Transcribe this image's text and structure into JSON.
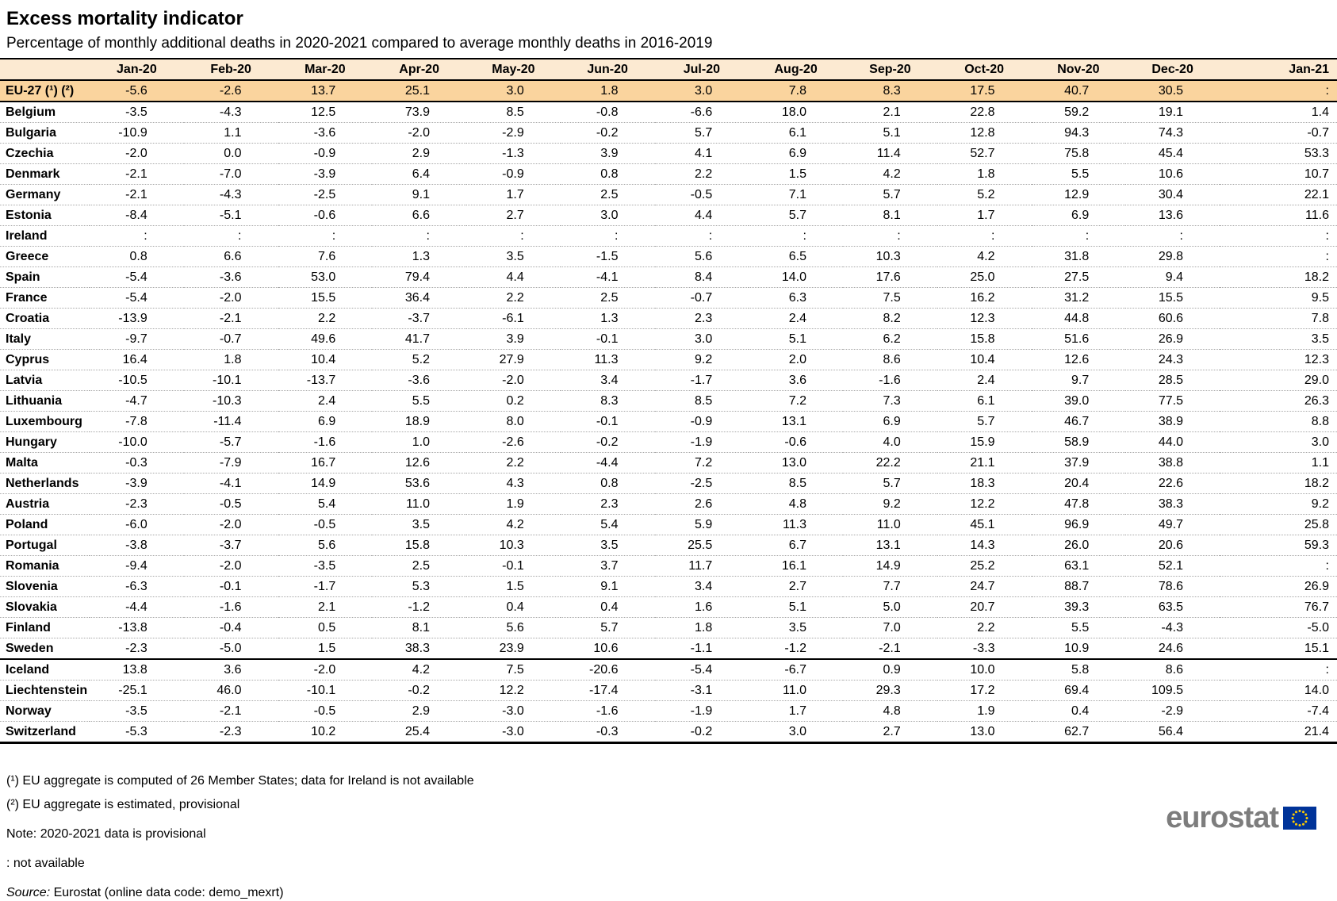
{
  "title": "Excess mortality indicator",
  "subtitle": "Percentage of monthly additional deaths in 2020-2021 compared to average monthly deaths in 2016-2019",
  "colors": {
    "header_bg": "#FCEAD2",
    "highlight_row_bg": "#FAD49E",
    "logo_gray": "#7D7D7D",
    "flag_blue": "#003399",
    "star_yellow": "#FFCC00"
  },
  "chart_data": {
    "type": "table",
    "columns": [
      "Jan-20",
      "Feb-20",
      "Mar-20",
      "Apr-20",
      "May-20",
      "Jun-20",
      "Jul-20",
      "Aug-20",
      "Sep-20",
      "Oct-20",
      "Nov-20",
      "Dec-20",
      "Jan-21"
    ],
    "not_available_symbol": ":",
    "rows": [
      {
        "name": "EU-27 (¹) (²)",
        "highlight": true,
        "values": [
          "-5.6",
          "-2.6",
          "13.7",
          "25.1",
          "3.0",
          "1.8",
          "3.0",
          "7.8",
          "8.3",
          "17.5",
          "40.7",
          "30.5",
          ":"
        ]
      },
      {
        "name": "Belgium",
        "values": [
          "-3.5",
          "-4.3",
          "12.5",
          "73.9",
          "8.5",
          "-0.8",
          "-6.6",
          "18.0",
          "2.1",
          "22.8",
          "59.2",
          "19.1",
          "1.4"
        ]
      },
      {
        "name": "Bulgaria",
        "values": [
          "-10.9",
          "1.1",
          "-3.6",
          "-2.0",
          "-2.9",
          "-0.2",
          "5.7",
          "6.1",
          "5.1",
          "12.8",
          "94.3",
          "74.3",
          "-0.7"
        ]
      },
      {
        "name": "Czechia",
        "values": [
          "-2.0",
          "0.0",
          "-0.9",
          "2.9",
          "-1.3",
          "3.9",
          "4.1",
          "6.9",
          "11.4",
          "52.7",
          "75.8",
          "45.4",
          "53.3"
        ]
      },
      {
        "name": "Denmark",
        "values": [
          "-2.1",
          "-7.0",
          "-3.9",
          "6.4",
          "-0.9",
          "0.8",
          "2.2",
          "1.5",
          "4.2",
          "1.8",
          "5.5",
          "10.6",
          "10.7"
        ]
      },
      {
        "name": "Germany",
        "values": [
          "-2.1",
          "-4.3",
          "-2.5",
          "9.1",
          "1.7",
          "2.5",
          "-0.5",
          "7.1",
          "5.7",
          "5.2",
          "12.9",
          "30.4",
          "22.1"
        ]
      },
      {
        "name": "Estonia",
        "values": [
          "-8.4",
          "-5.1",
          "-0.6",
          "6.6",
          "2.7",
          "3.0",
          "4.4",
          "5.7",
          "8.1",
          "1.7",
          "6.9",
          "13.6",
          "11.6"
        ]
      },
      {
        "name": "Ireland",
        "values": [
          ":",
          ":",
          ":",
          ":",
          ":",
          ":",
          ":",
          ":",
          ":",
          ":",
          ":",
          ":",
          ":"
        ]
      },
      {
        "name": "Greece",
        "values": [
          "0.8",
          "6.6",
          "7.6",
          "1.3",
          "3.5",
          "-1.5",
          "5.6",
          "6.5",
          "10.3",
          "4.2",
          "31.8",
          "29.8",
          ":"
        ]
      },
      {
        "name": "Spain",
        "values": [
          "-5.4",
          "-3.6",
          "53.0",
          "79.4",
          "4.4",
          "-4.1",
          "8.4",
          "14.0",
          "17.6",
          "25.0",
          "27.5",
          "9.4",
          "18.2"
        ]
      },
      {
        "name": "France",
        "values": [
          "-5.4",
          "-2.0",
          "15.5",
          "36.4",
          "2.2",
          "2.5",
          "-0.7",
          "6.3",
          "7.5",
          "16.2",
          "31.2",
          "15.5",
          "9.5"
        ]
      },
      {
        "name": "Croatia",
        "values": [
          "-13.9",
          "-2.1",
          "2.2",
          "-3.7",
          "-6.1",
          "1.3",
          "2.3",
          "2.4",
          "8.2",
          "12.3",
          "44.8",
          "60.6",
          "7.8"
        ]
      },
      {
        "name": "Italy",
        "values": [
          "-9.7",
          "-0.7",
          "49.6",
          "41.7",
          "3.9",
          "-0.1",
          "3.0",
          "5.1",
          "6.2",
          "15.8",
          "51.6",
          "26.9",
          "3.5"
        ]
      },
      {
        "name": "Cyprus",
        "values": [
          "16.4",
          "1.8",
          "10.4",
          "5.2",
          "27.9",
          "11.3",
          "9.2",
          "2.0",
          "8.6",
          "10.4",
          "12.6",
          "24.3",
          "12.3"
        ]
      },
      {
        "name": "Latvia",
        "values": [
          "-10.5",
          "-10.1",
          "-13.7",
          "-3.6",
          "-2.0",
          "3.4",
          "-1.7",
          "3.6",
          "-1.6",
          "2.4",
          "9.7",
          "28.5",
          "29.0"
        ]
      },
      {
        "name": "Lithuania",
        "values": [
          "-4.7",
          "-10.3",
          "2.4",
          "5.5",
          "0.2",
          "8.3",
          "8.5",
          "7.2",
          "7.3",
          "6.1",
          "39.0",
          "77.5",
          "26.3"
        ]
      },
      {
        "name": "Luxembourg",
        "values": [
          "-7.8",
          "-11.4",
          "6.9",
          "18.9",
          "8.0",
          "-0.1",
          "-0.9",
          "13.1",
          "6.9",
          "5.7",
          "46.7",
          "38.9",
          "8.8"
        ]
      },
      {
        "name": "Hungary",
        "values": [
          "-10.0",
          "-5.7",
          "-1.6",
          "1.0",
          "-2.6",
          "-0.2",
          "-1.9",
          "-0.6",
          "4.0",
          "15.9",
          "58.9",
          "44.0",
          "3.0"
        ]
      },
      {
        "name": "Malta",
        "values": [
          "-0.3",
          "-7.9",
          "16.7",
          "12.6",
          "2.2",
          "-4.4",
          "7.2",
          "13.0",
          "22.2",
          "21.1",
          "37.9",
          "38.8",
          "1.1"
        ]
      },
      {
        "name": "Netherlands",
        "values": [
          "-3.9",
          "-4.1",
          "14.9",
          "53.6",
          "4.3",
          "0.8",
          "-2.5",
          "8.5",
          "5.7",
          "18.3",
          "20.4",
          "22.6",
          "18.2"
        ]
      },
      {
        "name": "Austria",
        "values": [
          "-2.3",
          "-0.5",
          "5.4",
          "11.0",
          "1.9",
          "2.3",
          "2.6",
          "4.8",
          "9.2",
          "12.2",
          "47.8",
          "38.3",
          "9.2"
        ]
      },
      {
        "name": "Poland",
        "values": [
          "-6.0",
          "-2.0",
          "-0.5",
          "3.5",
          "4.2",
          "5.4",
          "5.9",
          "11.3",
          "11.0",
          "45.1",
          "96.9",
          "49.7",
          "25.8"
        ]
      },
      {
        "name": "Portugal",
        "values": [
          "-3.8",
          "-3.7",
          "5.6",
          "15.8",
          "10.3",
          "3.5",
          "25.5",
          "6.7",
          "13.1",
          "14.3",
          "26.0",
          "20.6",
          "59.3"
        ]
      },
      {
        "name": "Romania",
        "values": [
          "-9.4",
          "-2.0",
          "-3.5",
          "2.5",
          "-0.1",
          "3.7",
          "11.7",
          "16.1",
          "14.9",
          "25.2",
          "63.1",
          "52.1",
          ":"
        ]
      },
      {
        "name": "Slovenia",
        "values": [
          "-6.3",
          "-0.1",
          "-1.7",
          "5.3",
          "1.5",
          "9.1",
          "3.4",
          "2.7",
          "7.7",
          "24.7",
          "88.7",
          "78.6",
          "26.9"
        ]
      },
      {
        "name": "Slovakia",
        "values": [
          "-4.4",
          "-1.6",
          "2.1",
          "-1.2",
          "0.4",
          "0.4",
          "1.6",
          "5.1",
          "5.0",
          "20.7",
          "39.3",
          "63.5",
          "76.7"
        ]
      },
      {
        "name": "Finland",
        "values": [
          "-13.8",
          "-0.4",
          "0.5",
          "8.1",
          "5.6",
          "5.7",
          "1.8",
          "3.5",
          "7.0",
          "2.2",
          "5.5",
          "-4.3",
          "-5.0"
        ]
      },
      {
        "name": "Sweden",
        "thick_border_after": true,
        "values": [
          "-2.3",
          "-5.0",
          "1.5",
          "38.3",
          "23.9",
          "10.6",
          "-1.1",
          "-1.2",
          "-2.1",
          "-3.3",
          "10.9",
          "24.6",
          "15.1"
        ]
      },
      {
        "name": "Iceland",
        "values": [
          "13.8",
          "3.6",
          "-2.0",
          "4.2",
          "7.5",
          "-20.6",
          "-5.4",
          "-6.7",
          "0.9",
          "10.0",
          "5.8",
          "8.6",
          ":"
        ]
      },
      {
        "name": "Liechtenstein",
        "values": [
          "-25.1",
          "46.0",
          "-10.1",
          "-0.2",
          "12.2",
          "-17.4",
          "-3.1",
          "11.0",
          "29.3",
          "17.2",
          "69.4",
          "109.5",
          "14.0"
        ]
      },
      {
        "name": "Norway",
        "values": [
          "-3.5",
          "-2.1",
          "-0.5",
          "2.9",
          "-3.0",
          "-1.6",
          "-1.9",
          "1.7",
          "4.8",
          "1.9",
          "0.4",
          "-2.9",
          "-7.4"
        ]
      },
      {
        "name": "Switzerland",
        "values": [
          "-5.3",
          "-2.3",
          "10.2",
          "25.4",
          "-3.0",
          "-0.3",
          "-0.2",
          "3.0",
          "2.7",
          "13.0",
          "62.7",
          "56.4",
          "21.4"
        ]
      }
    ]
  },
  "footnotes": {
    "fn1": "(¹) EU aggregate is computed of 26 Member States; data for Ireland is not available",
    "fn2": "(²) EU aggregate is estimated, provisional",
    "note": "Note: 2020-2021 data is provisional",
    "not_available": ": not available",
    "source_label": "Source:",
    "source_text": " Eurostat (online data code: demo_mexrt)"
  },
  "branding": {
    "logo_text": "eurostat"
  }
}
